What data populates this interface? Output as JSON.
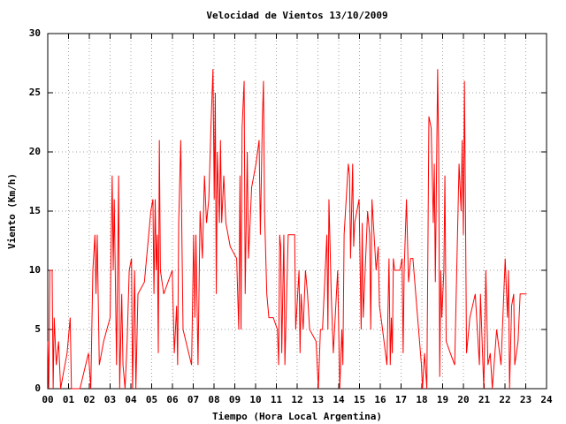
{
  "chart_data": {
    "type": "line",
    "title": "Velocidad de Vientos 13/10/2009",
    "x_label": "Tiempo (Hora Local Argentina)",
    "y_label": "Viento (Km/h)",
    "x": [
      0.0,
      0.05,
      0.1,
      0.21,
      0.26,
      0.31,
      0.41,
      0.52,
      0.62,
      0.72,
      0.93,
      1.08,
      1.14,
      1.24,
      1.55,
      1.96,
      2.07,
      2.17,
      2.27,
      2.32,
      2.38,
      2.48,
      2.69,
      3.0,
      3.1,
      3.15,
      3.2,
      3.31,
      3.41,
      3.46,
      3.56,
      3.62,
      3.72,
      3.82,
      3.92,
      4.03,
      4.08,
      4.18,
      4.24,
      4.34,
      4.65,
      4.96,
      5.06,
      5.11,
      5.17,
      5.22,
      5.27,
      5.32,
      5.37,
      5.42,
      5.58,
      5.99,
      6.09,
      6.2,
      6.25,
      6.3,
      6.4,
      6.46,
      6.51,
      6.92,
      7.02,
      7.08,
      7.13,
      7.23,
      7.33,
      7.44,
      7.54,
      7.64,
      7.75,
      7.85,
      7.95,
      8.01,
      8.06,
      8.11,
      8.16,
      8.26,
      8.31,
      8.37,
      8.47,
      8.57,
      8.78,
      9.09,
      9.19,
      9.25,
      9.3,
      9.35,
      9.45,
      9.5,
      9.6,
      9.66,
      9.81,
      10.02,
      10.17,
      10.23,
      10.33,
      10.38,
      10.43,
      10.54,
      10.64,
      10.85,
      11.05,
      11.11,
      11.16,
      11.21,
      11.26,
      11.36,
      11.41,
      11.57,
      11.88,
      11.93,
      12.09,
      12.14,
      12.19,
      12.29,
      12.4,
      12.5,
      12.6,
      12.91,
      13.02,
      13.12,
      13.22,
      13.43,
      13.48,
      13.53,
      13.64,
      13.74,
      13.95,
      14.05,
      14.15,
      14.2,
      14.26,
      14.46,
      14.52,
      14.57,
      14.67,
      14.72,
      14.77,
      14.98,
      15.08,
      15.13,
      15.18,
      15.39,
      15.49,
      15.54,
      15.6,
      15.8,
      15.9,
      15.96,
      16.11,
      16.32,
      16.42,
      16.48,
      16.53,
      16.58,
      16.63,
      16.69,
      16.74,
      16.94,
      17.05,
      17.1,
      17.15,
      17.26,
      17.36,
      17.46,
      17.57,
      17.98,
      18.03,
      18.13,
      18.24,
      18.34,
      18.45,
      18.55,
      18.6,
      18.65,
      18.76,
      18.81,
      18.86,
      18.91,
      18.96,
      19.06,
      19.11,
      19.17,
      19.37,
      19.58,
      19.79,
      19.89,
      19.94,
      20.0,
      20.05,
      20.1,
      20.15,
      20.26,
      20.31,
      20.57,
      20.77,
      20.82,
      20.98,
      21.08,
      21.18,
      21.29,
      21.39,
      21.6,
      21.81,
      22.01,
      22.12,
      22.17,
      22.22,
      22.32,
      22.42,
      22.47,
      22.63,
      22.73,
      23.04
    ],
    "series": [
      {
        "color": "#ff0000",
        "values": [
          4,
          0,
          10,
          10,
          0,
          6,
          2,
          4,
          0,
          1,
          3,
          6,
          0,
          0,
          0,
          3,
          0,
          10,
          13,
          8,
          13,
          2,
          4,
          6,
          18,
          10,
          16,
          2,
          18,
          0,
          8,
          2,
          0,
          4,
          10,
          11,
          0,
          10,
          0,
          8,
          9,
          15,
          16,
          8,
          16,
          10,
          13,
          3,
          21,
          10,
          8,
          10,
          3,
          7,
          2,
          14,
          21,
          12,
          5,
          2,
          13,
          6,
          13,
          2,
          15,
          11,
          18,
          14,
          16,
          22,
          27,
          16,
          25,
          8,
          20,
          14,
          21,
          14,
          18,
          14,
          12,
          11,
          5,
          18,
          5,
          22,
          26,
          8,
          20,
          11,
          17,
          19,
          21,
          13,
          23,
          26,
          15,
          8,
          6,
          6,
          5,
          2,
          13,
          12,
          3,
          13,
          2,
          13,
          13,
          5,
          10,
          3,
          8,
          5,
          10,
          8,
          5,
          4,
          0,
          5,
          5,
          13,
          5,
          16,
          8,
          3,
          10,
          0,
          5,
          2,
          13,
          19,
          18,
          11,
          19,
          12,
          14,
          16,
          5,
          14,
          6,
          15,
          13,
          5,
          16,
          10,
          12,
          7,
          5,
          2,
          11,
          2,
          6,
          3,
          11,
          10,
          10,
          10,
          11,
          3,
          10,
          16,
          9,
          11,
          11,
          2,
          0,
          3,
          0,
          23,
          22,
          14,
          19,
          9,
          27,
          20,
          1,
          10,
          6,
          10,
          18,
          4,
          3,
          2,
          19,
          15,
          21,
          13,
          26,
          15,
          3,
          5,
          6,
          8,
          2,
          8,
          0,
          10,
          2,
          3,
          0,
          5,
          2,
          11,
          6,
          10,
          0,
          7,
          8,
          2,
          4,
          8,
          8
        ]
      }
    ],
    "xlim": [
      0,
      24
    ],
    "xticks": [
      {
        "value": 0,
        "label": "00"
      },
      {
        "value": 1,
        "label": "01"
      },
      {
        "value": 2,
        "label": "02"
      },
      {
        "value": 3,
        "label": "03"
      },
      {
        "value": 4,
        "label": "04"
      },
      {
        "value": 5,
        "label": "05"
      },
      {
        "value": 6,
        "label": "06"
      },
      {
        "value": 7,
        "label": "07"
      },
      {
        "value": 8,
        "label": "08"
      },
      {
        "value": 9,
        "label": "09"
      },
      10,
      11,
      12,
      13,
      14,
      15,
      16,
      17,
      18,
      19,
      20,
      21,
      22,
      23,
      24
    ],
    "ylim": [
      0,
      30
    ],
    "yticks": [
      0,
      5,
      10,
      15,
      20,
      25,
      30
    ],
    "grid": true
  }
}
